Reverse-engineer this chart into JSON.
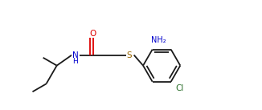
{
  "bg_color": "#ffffff",
  "line_color": "#1a1a1a",
  "o_color": "#dd0000",
  "n_color": "#0000cc",
  "s_color": "#996600",
  "cl_color": "#2a6e2a",
  "line_width": 1.3,
  "font_size": 7.5,
  "figsize": [
    3.26,
    1.37
  ],
  "dpi": 100,
  "xlim": [
    0,
    10.5
  ],
  "ylim": [
    0,
    4.3
  ]
}
